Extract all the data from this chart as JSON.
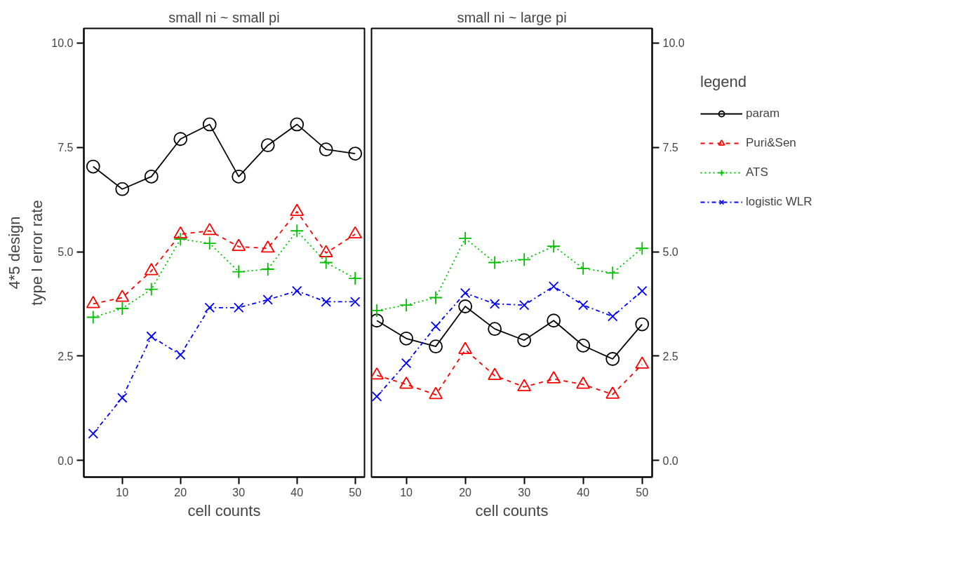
{
  "chart_data": [
    {
      "type": "line",
      "title": "small ni ~ small pi",
      "xlabel": "cell counts",
      "ylabel": "type I error rate",
      "annotations": [
        "4*5 design"
      ],
      "x": [
        5,
        10,
        15,
        20,
        25,
        30,
        35,
        40,
        45,
        50
      ],
      "xlim": [
        3.4,
        51.6
      ],
      "xticks": [
        10,
        20,
        30,
        40,
        50
      ],
      "ylim": [
        -0.4,
        10.35
      ],
      "yticks": [
        {
          "value": 0,
          "label": "0.0"
        },
        {
          "value": 2.5,
          "label": "2.5"
        },
        {
          "value": 5,
          "label": "5.0"
        },
        {
          "value": 7.5,
          "label": "7.5"
        },
        {
          "value": 10,
          "label": "10.0"
        }
      ],
      "series": [
        {
          "color": "#000000",
          "marker": "circle",
          "line_style": "solid",
          "values": [
            7.04,
            6.5,
            6.8,
            7.7,
            8.05,
            6.8,
            7.55,
            8.05,
            7.45,
            7.35
          ]
        },
        {
          "color": "#ff0000",
          "marker": "triangle",
          "line_style": "dashed",
          "values": [
            3.75,
            3.9,
            4.54,
            5.42,
            5.5,
            5.12,
            5.08,
            5.96,
            4.97,
            5.42
          ]
        },
        {
          "color": "#00c000",
          "marker": "cross",
          "line_style": "dotted",
          "values": [
            3.43,
            3.64,
            4.1,
            5.3,
            5.2,
            4.52,
            4.58,
            5.5,
            4.74,
            4.36
          ]
        },
        {
          "color": "#0000ff",
          "marker": "x",
          "line_style": "dashdot",
          "values": [
            0.64,
            1.5,
            2.97,
            2.53,
            3.66,
            3.66,
            3.85,
            4.06,
            3.8,
            3.8
          ]
        }
      ]
    },
    {
      "type": "line",
      "title": "small ni ~ large pi",
      "xlabel": "cell counts",
      "legend_title": "legend",
      "x": [
        5,
        10,
        15,
        20,
        25,
        30,
        35,
        40,
        45,
        50
      ],
      "xlim": [
        4.1,
        51.7
      ],
      "xticks": [
        10,
        20,
        30,
        40,
        50
      ],
      "ylim": [
        -0.4,
        10.35
      ],
      "yticks": [
        {
          "value": 0,
          "label": "0.0"
        },
        {
          "value": 2.5,
          "label": "2.5"
        },
        {
          "value": 5,
          "label": "5.0"
        },
        {
          "value": 7.5,
          "label": "7.5"
        },
        {
          "value": 10,
          "label": "10.0"
        }
      ],
      "legend": "right",
      "series": [
        {
          "name": "param",
          "color": "#000000",
          "marker": "circle",
          "line_style": "solid",
          "values": [
            3.35,
            2.92,
            2.73,
            3.69,
            3.15,
            2.88,
            3.35,
            2.75,
            2.43,
            3.26
          ]
        },
        {
          "name": "Puri&Sen",
          "color": "#ff0000",
          "marker": "triangle",
          "line_style": "dashed",
          "values": [
            2.04,
            1.82,
            1.57,
            2.65,
            2.03,
            1.76,
            1.95,
            1.82,
            1.58,
            2.3
          ]
        },
        {
          "name": "ATS",
          "color": "#00c000",
          "marker": "cross",
          "line_style": "dotted",
          "values": [
            3.59,
            3.72,
            3.9,
            5.32,
            4.74,
            4.81,
            5.13,
            4.6,
            4.49,
            5.08
          ]
        },
        {
          "name": "logistic WLR",
          "color": "#0000ff",
          "marker": "x",
          "line_style": "dashdot",
          "values": [
            1.53,
            2.33,
            3.21,
            4.01,
            3.75,
            3.72,
            4.17,
            3.72,
            3.45,
            4.06
          ]
        }
      ]
    }
  ]
}
